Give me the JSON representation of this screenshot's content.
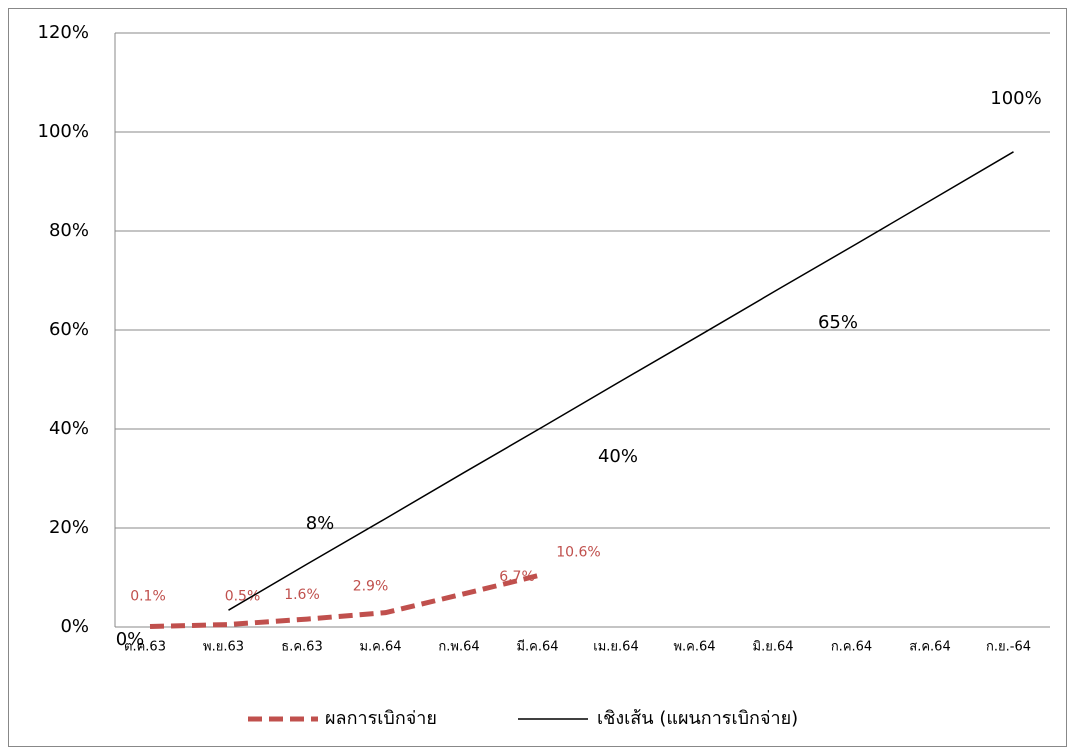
{
  "chart_data": {
    "type": "line",
    "categories": [
      "ต.ค.63",
      "พ.ย.63",
      "ธ.ค.63",
      "ม.ค.64",
      "ก.พ.64",
      "มี.ค.64",
      "เม.ย.64",
      "พ.ค.64",
      "มิ.ย.64",
      "ก.ค.64",
      "ส.ค.64",
      "ก.ย.-64"
    ],
    "series": [
      {
        "name": "ผลการเบิกจ่าย",
        "color": "#c0504d",
        "dashed": true,
        "values": [
          0.1,
          0.5,
          1.6,
          2.9,
          6.7,
          10.6,
          null,
          null,
          null,
          null,
          null,
          null
        ],
        "value_labels": [
          "0.1%",
          "0.5%",
          "1.6%",
          "2.9%",
          "6.7%",
          "10.6%",
          null,
          null,
          null,
          null,
          null,
          null
        ]
      },
      {
        "name": "เชิงเส้น (แผนการเบิกจ่าย)",
        "color": "#000000",
        "dashed": false,
        "values": [
          null,
          3.4,
          12.7,
          21.9,
          31.2,
          40.4,
          49.7,
          58.9,
          68.2,
          77.4,
          86.7,
          96
        ]
      }
    ],
    "annotations": [
      "0%",
      "8%",
      "40%",
      "65%",
      "100%"
    ],
    "ylim": [
      0,
      120
    ],
    "yticks": [
      {
        "value": 0,
        "label": "0%"
      },
      {
        "value": 20,
        "label": "20%"
      },
      {
        "value": 40,
        "label": "40%"
      },
      {
        "value": 60,
        "label": "60%"
      },
      {
        "value": 80,
        "label": "80%"
      },
      {
        "value": 100,
        "label": "100%"
      },
      {
        "value": 120,
        "label": "120%"
      }
    ],
    "grid": true,
    "legend": "bottom"
  }
}
